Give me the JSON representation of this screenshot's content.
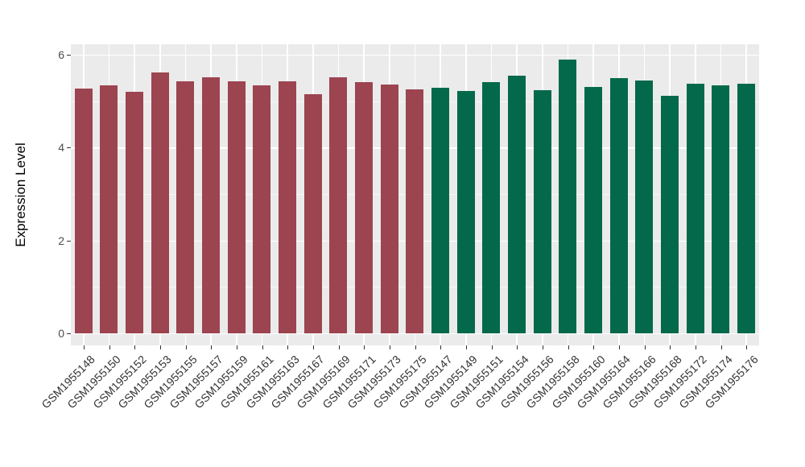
{
  "chart_data": {
    "type": "bar",
    "title": "",
    "xlabel": "",
    "ylabel": "Expression Level",
    "ylim": [
      0,
      6.2
    ],
    "yticks": [
      0,
      2,
      4,
      6
    ],
    "minor_gridlines": [
      1,
      3,
      5
    ],
    "legend_position": "none",
    "grid": true,
    "panel_background": "#EBEBEB",
    "gridline_color": "#FFFFFF",
    "tick_label_color": "#4D4D4D",
    "groups": [
      {
        "name": "group-1",
        "color": "#9C4450"
      },
      {
        "name": "group-2",
        "color": "#04694A"
      }
    ],
    "bars": [
      {
        "label": "GSM1955148",
        "value": 5.27,
        "group": 0
      },
      {
        "label": "GSM1955150",
        "value": 5.33,
        "group": 0
      },
      {
        "label": "GSM1955152",
        "value": 5.2,
        "group": 0
      },
      {
        "label": "GSM1955153",
        "value": 5.62,
        "group": 0
      },
      {
        "label": "GSM1955155",
        "value": 5.43,
        "group": 0
      },
      {
        "label": "GSM1955157",
        "value": 5.52,
        "group": 0
      },
      {
        "label": "GSM1955159",
        "value": 5.43,
        "group": 0
      },
      {
        "label": "GSM1955161",
        "value": 5.33,
        "group": 0
      },
      {
        "label": "GSM1955163",
        "value": 5.43,
        "group": 0
      },
      {
        "label": "GSM1955167",
        "value": 5.15,
        "group": 0
      },
      {
        "label": "GSM1955169",
        "value": 5.52,
        "group": 0
      },
      {
        "label": "GSM1955171",
        "value": 5.41,
        "group": 0
      },
      {
        "label": "GSM1955173",
        "value": 5.36,
        "group": 0
      },
      {
        "label": "GSM1955175",
        "value": 5.26,
        "group": 0
      },
      {
        "label": "GSM1955147",
        "value": 5.29,
        "group": 1
      },
      {
        "label": "GSM1955149",
        "value": 5.21,
        "group": 1
      },
      {
        "label": "GSM1955151",
        "value": 5.4,
        "group": 1
      },
      {
        "label": "GSM1955154",
        "value": 5.55,
        "group": 1
      },
      {
        "label": "GSM1955156",
        "value": 5.24,
        "group": 1
      },
      {
        "label": "GSM1955158",
        "value": 5.89,
        "group": 1
      },
      {
        "label": "GSM1955160",
        "value": 5.3,
        "group": 1
      },
      {
        "label": "GSM1955164",
        "value": 5.5,
        "group": 1
      },
      {
        "label": "GSM1955166",
        "value": 5.44,
        "group": 1
      },
      {
        "label": "GSM1955168",
        "value": 5.12,
        "group": 1
      },
      {
        "label": "GSM1955172",
        "value": 5.38,
        "group": 1
      },
      {
        "label": "GSM1955174",
        "value": 5.34,
        "group": 1
      },
      {
        "label": "GSM1955176",
        "value": 5.38,
        "group": 1
      }
    ]
  }
}
